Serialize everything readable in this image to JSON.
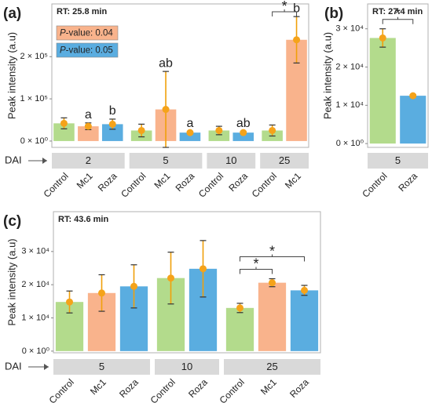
{
  "chart_data": [
    {
      "type": "bar",
      "panel": "(a)",
      "subtitle": "RT: 25.8 min",
      "ylabel": "Peak intensity (a.u)",
      "facet_label": "DAI",
      "ylim": [
        -15000,
        325000
      ],
      "yticks": [
        {
          "value": 0,
          "label": "0 × 10⁰"
        },
        {
          "value": 100000,
          "label": "1 × 10⁵"
        },
        {
          "value": 200000,
          "label": "2 × 10⁵"
        }
      ],
      "colors": {
        "Control": "#b3db8c",
        "Mc1": "#f9b38c",
        "Roza": "#5aade0"
      },
      "letter_colors": {
        "Mc1": "#d98b1c",
        "Roza": "#3a86c4"
      },
      "annotations": [
        {
          "italic": "P",
          "text": "-value: 0.04",
          "color": "#f9b38c"
        },
        {
          "italic": "P",
          "text": "-value: 0.05",
          "color": "#5aade0"
        }
      ],
      "facets": [
        {
          "name": "2",
          "categories": [
            "Control",
            "Mc1",
            "Roza"
          ],
          "values": [
            42000,
            35000,
            40000
          ],
          "errors": [
            13000,
            8000,
            12000
          ],
          "letters": [
            null,
            "a",
            "b"
          ]
        },
        {
          "name": "5",
          "categories": [
            "Control",
            "Mc1",
            "Roza"
          ],
          "values": [
            25000,
            75000,
            20000
          ],
          "errors": [
            15000,
            90000,
            3000
          ],
          "letters": [
            null,
            "ab",
            "a"
          ]
        },
        {
          "name": "10",
          "categories": [
            "Control",
            "Roza"
          ],
          "values": [
            25000,
            20000
          ],
          "errors": [
            10000,
            3000
          ],
          "letters": [
            null,
            "ab"
          ]
        },
        {
          "name": "25",
          "categories": [
            "Control",
            "Mc1"
          ],
          "values": [
            25000,
            240000
          ],
          "errors": [
            13000,
            55000
          ],
          "letters": [
            null,
            "b"
          ]
        }
      ],
      "brackets": [
        {
          "facet": 3,
          "from": 0,
          "to": 1,
          "label": "*"
        }
      ]
    },
    {
      "type": "bar",
      "panel": "(b)",
      "subtitle": "RT: 27.4 min",
      "ylabel": "Peak intensity (a.u)",
      "ylim": [
        -1000,
        36500
      ],
      "yticks": [
        {
          "value": 0,
          "label": "0 × 10⁰"
        },
        {
          "value": 10000,
          "label": "1 × 10⁴"
        },
        {
          "value": 20000,
          "label": "2 × 10⁴"
        },
        {
          "value": 30000,
          "label": "3 × 10⁴"
        }
      ],
      "colors": {
        "Control": "#b3db8c",
        "Roza": "#5aade0"
      },
      "facets": [
        {
          "name": "5",
          "categories": [
            "Control",
            "Roza"
          ],
          "values": [
            27600,
            12500
          ],
          "errors": [
            2400,
            300
          ]
        }
      ],
      "brackets": [
        {
          "facet": 0,
          "from": 0,
          "to": 1,
          "label": "*"
        }
      ]
    },
    {
      "type": "bar",
      "panel": "(c)",
      "subtitle": "RT: 43.6 min",
      "ylabel": "Peak intensity (a.u)",
      "facet_label": "DAI",
      "ylim": [
        -500,
        42000
      ],
      "yticks": [
        {
          "value": 0,
          "label": "0 × 10⁰"
        },
        {
          "value": 10000,
          "label": "1 × 10⁴"
        },
        {
          "value": 20000,
          "label": "2 × 10⁴"
        },
        {
          "value": 30000,
          "label": "3 × 10⁴"
        }
      ],
      "colors": {
        "Control": "#b3db8c",
        "Mc1": "#f9b38c",
        "Roza": "#5aade0"
      },
      "facets": [
        {
          "name": "5",
          "categories": [
            "Control",
            "Mc1",
            "Roza"
          ],
          "values": [
            14800,
            17500,
            19500
          ],
          "errors": [
            3300,
            5500,
            6500
          ]
        },
        {
          "name": "10",
          "categories": [
            "Control",
            "Roza"
          ],
          "values": [
            22000,
            24800
          ],
          "errors": [
            7800,
            8500
          ]
        },
        {
          "name": "25",
          "categories": [
            "Control",
            "Mc1",
            "Roza"
          ],
          "values": [
            13000,
            20600,
            18300
          ],
          "errors": [
            1400,
            1200,
            1500
          ]
        }
      ],
      "brackets": [
        {
          "facet": 2,
          "from": 0,
          "to": 1,
          "label": "*"
        },
        {
          "facet": 2,
          "from": 0,
          "to": 2,
          "label": "*"
        }
      ]
    }
  ]
}
